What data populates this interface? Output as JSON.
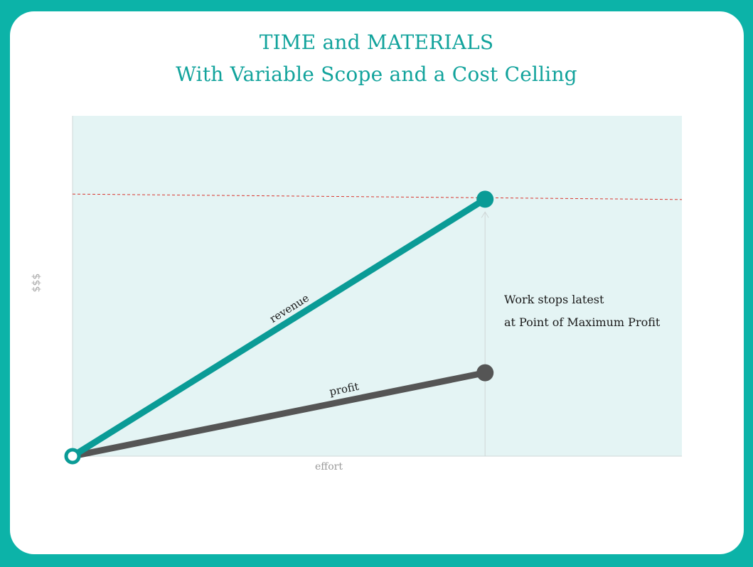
{
  "header": {
    "title_line1": "TIME and MATERIALS",
    "title_line2": "With Variable Scope and a Cost Celling"
  },
  "colors": {
    "frame": "#0cb3a8",
    "plot_bg": "#e4f4f4",
    "revenue": "#0a9b96",
    "profit": "#555555",
    "ceiling": "#d9362f",
    "title": "#12a39c"
  },
  "chart_data": {
    "type": "line",
    "xlabel": "effort",
    "ylabel": "$$$",
    "xlim": [
      0,
      1
    ],
    "ylim": [
      0,
      1
    ],
    "grid": false,
    "series": [
      {
        "name": "revenue",
        "x": [
          0,
          0.677
        ],
        "y": [
          0,
          0.755
        ]
      },
      {
        "name": "profit",
        "x": [
          0,
          0.677
        ],
        "y": [
          0,
          0.245
        ]
      }
    ],
    "reference_lines": [
      {
        "kind": "cost-ceiling",
        "style": "dashed",
        "y_start": 0.77,
        "y_end": 0.754
      }
    ],
    "stop_marker_x": 0.677,
    "annotations": [
      "Work stops latest",
      "at Point of Maximum Profit"
    ]
  }
}
